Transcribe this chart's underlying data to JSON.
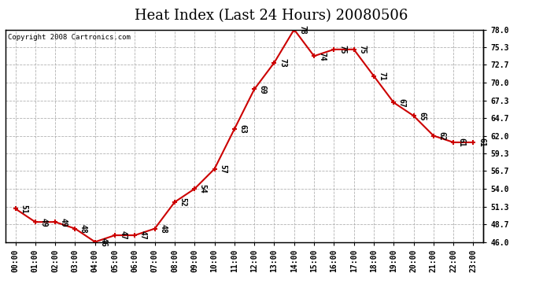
{
  "title": "Heat Index (Last 24 Hours) 20080506",
  "copyright": "Copyright 2008 Cartronics.com",
  "hours": [
    0,
    1,
    2,
    3,
    4,
    5,
    6,
    7,
    8,
    9,
    10,
    11,
    12,
    13,
    14,
    15,
    16,
    17,
    18,
    19,
    20,
    21,
    22,
    23
  ],
  "x_labels": [
    "00:00",
    "01:00",
    "02:00",
    "03:00",
    "04:00",
    "05:00",
    "06:00",
    "07:00",
    "08:00",
    "09:00",
    "10:00",
    "11:00",
    "12:00",
    "13:00",
    "14:00",
    "15:00",
    "16:00",
    "17:00",
    "18:00",
    "19:00",
    "20:00",
    "21:00",
    "22:00",
    "23:00"
  ],
  "values": [
    51,
    49,
    49,
    48,
    46,
    47,
    47,
    48,
    52,
    54,
    57,
    63,
    69,
    73,
    78,
    74,
    75,
    75,
    71,
    67,
    65,
    62,
    61,
    61
  ],
  "ylim": [
    46.0,
    78.0
  ],
  "yticks": [
    46.0,
    48.7,
    51.3,
    54.0,
    56.7,
    59.3,
    62.0,
    64.7,
    67.3,
    70.0,
    72.7,
    75.3,
    78.0
  ],
  "line_color": "#cc0000",
  "marker_color": "#cc0000",
  "bg_color": "#ffffff",
  "plot_bg_color": "#ffffff",
  "grid_color": "#aaaaaa",
  "title_fontsize": 13,
  "label_fontsize": 7,
  "tick_fontsize": 7,
  "copyright_fontsize": 6.5
}
